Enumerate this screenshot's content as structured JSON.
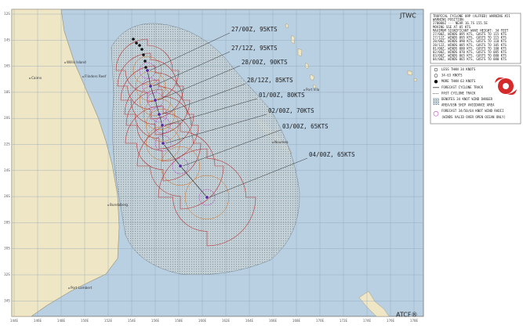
{
  "header": {
    "agency": "JTWC",
    "footer": "ATCF®",
    "warning_lines": [
      "TROPICAL CYCLONE 09P (ALFRED) WARNING #21",
      "WARNING POSITION:",
      "270000Z --- NEAR 16.7S 155.5E",
      "MOVING SSE AT 05 KTS",
      "MAXIMUM SIGNIFICANT WAVE HEIGHT: 34 FEET",
      "27/00Z, WINDS 095 KTS, GUSTS TO 115 KTS",
      "27/12Z, WINDS 095 KTS, GUSTS TO 115 KTS",
      "28/00Z, WINDS 090 KTS, GUSTS TO 110 KTS",
      "28/12Z, WINDS 085 KTS, GUSTS TO 105 KTS",
      "01/00Z, WINDS 080 KTS, GUSTS TO 100 KTS",
      "02/00Z, WINDS 070 KTS, GUSTS TO 085 KTS",
      "03/00Z, WINDS 065 KTS, GUSTS TO 080 KTS",
      "04/00Z, WINDS 065 KTS, GUSTS TO 080 KTS"
    ]
  },
  "legend": {
    "items": [
      "LESS THAN 34 KNOTS",
      "34-63 KNOTS",
      "MORE THAN 63 KNOTS",
      "FORECAST CYCLONE TRACK",
      "PAST CYCLONE TRACK",
      "DENOTES 34 KNOT WIND DANGER",
      "AREA/USN SHIP AVOIDANCE AREA",
      "FORECAST 34/50/64 KNOT WIND RADII",
      "(WINDS VALID OVER OPEN OCEAN ONLY)"
    ]
  },
  "forecast_points": [
    {
      "label": "27/00Z, 95KTS"
    },
    {
      "label": "27/12Z, 95KTS"
    },
    {
      "label": "28/00Z, 90KTS"
    },
    {
      "label": "28/12Z, 85KTS"
    },
    {
      "label": "01/00Z, 80KTS"
    },
    {
      "label": "02/00Z, 70KTS"
    },
    {
      "label": "03/00Z, 65KTS"
    },
    {
      "label": "04/00Z, 65KTS"
    }
  ],
  "places": [
    {
      "name": "Willis Island"
    },
    {
      "name": "Cairns"
    },
    {
      "name": "Flinders Reef"
    },
    {
      "name": "Noumea"
    },
    {
      "name": "Port Vila"
    },
    {
      "name": "Bundaberg"
    },
    {
      "name": "Port Lambert"
    }
  ],
  "latitude_labels": [
    "12S",
    "14S",
    "16S",
    "18S",
    "20S",
    "22S",
    "24S",
    "26S",
    "28S",
    "30S",
    "32S",
    "34S"
  ],
  "longitude_labels": [
    "144E",
    "146E",
    "148E",
    "150E",
    "152E",
    "154E",
    "156E",
    "158E",
    "160E",
    "162E",
    "164E",
    "166E",
    "168E",
    "170E",
    "172E",
    "174E",
    "176E",
    "178E"
  ]
}
